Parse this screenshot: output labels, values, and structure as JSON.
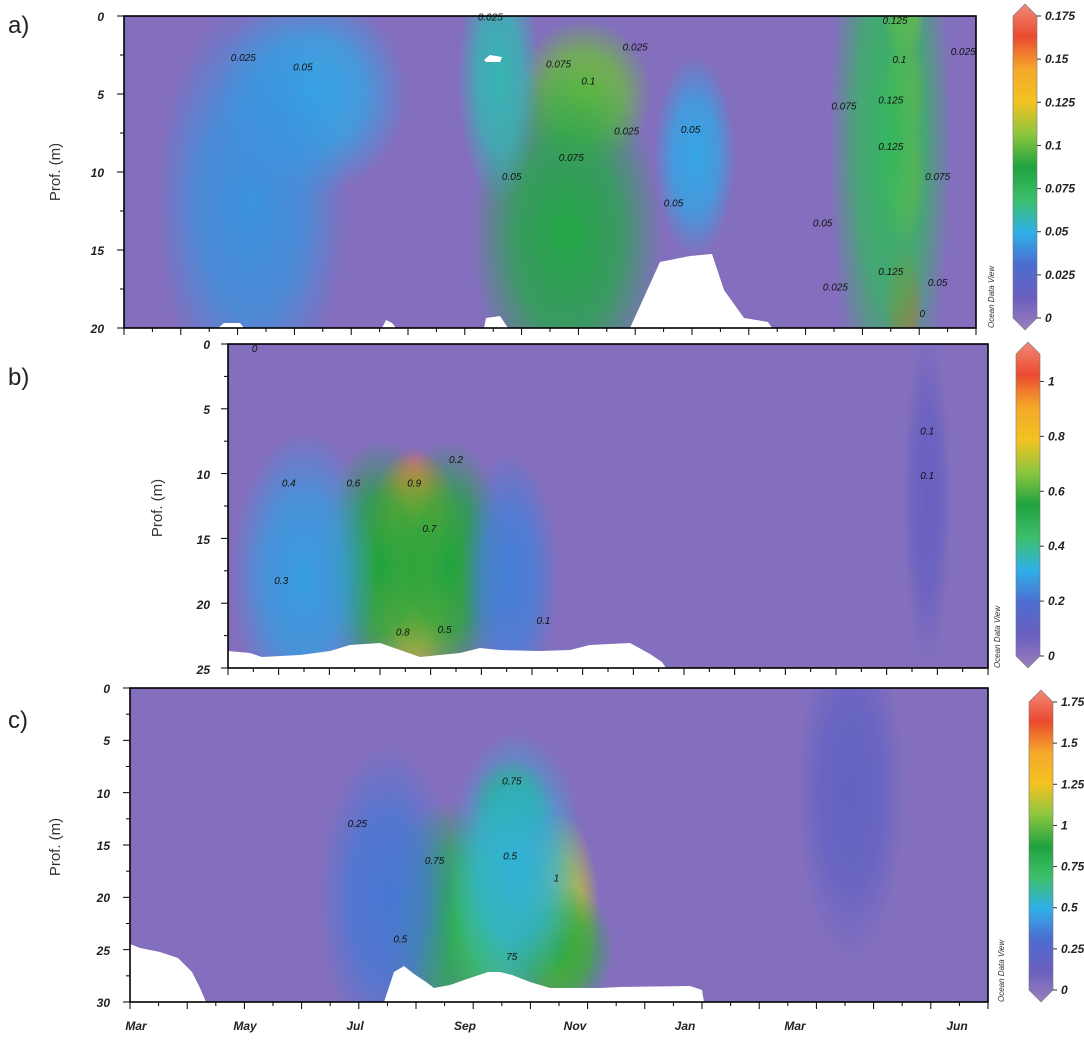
{
  "colors": {
    "scale": [
      "#9c7fbe",
      "#6a5fbe",
      "#4c6cd0",
      "#2fb0e8",
      "#3cbf6a",
      "#1fa33f",
      "#8cc63f",
      "#f3c221",
      "#f5a82a",
      "#ea4a2f",
      "#f08a78"
    ],
    "mask": "#ffffff",
    "frame": "#000000",
    "contour": "#3b3b3b"
  },
  "chart_data": [
    {
      "panel": "a)",
      "type": "heatmap",
      "ylabel": "Prof. (m)",
      "yticks": [
        "0",
        "5",
        "10",
        "15",
        "20"
      ],
      "ylim": [
        20,
        0
      ],
      "xlim": [
        "Mar",
        "Jun"
      ],
      "xticks_labeled": false,
      "colorbar": {
        "min": 0,
        "max": 0.175,
        "ticks": [
          "0",
          "0.025",
          "0.05",
          "0.075",
          "0.1",
          "0.125",
          "0.15",
          "0.175"
        ]
      },
      "watermark": "Ocean Data View",
      "hotspots": [
        {
          "time": 0.22,
          "depth": 5,
          "value": 0.05,
          "wt": 0.07,
          "wd": 4
        },
        {
          "time": 0.15,
          "depth": 12,
          "value": 0.045,
          "wt": 0.07,
          "wd": 8
        },
        {
          "time": 0.54,
          "depth": 5,
          "value": 0.1,
          "wt": 0.05,
          "wd": 3
        },
        {
          "time": 0.52,
          "depth": 14,
          "value": 0.085,
          "wt": 0.07,
          "wd": 7
        },
        {
          "time": 0.44,
          "depth": 4,
          "value": 0.06,
          "wt": 0.03,
          "wd": 5
        },
        {
          "time": 0.67,
          "depth": 9,
          "value": 0.05,
          "wt": 0.03,
          "wd": 4
        },
        {
          "time": 0.915,
          "depth": 0,
          "value": 0.125,
          "wt": 0.015,
          "wd": 2
        },
        {
          "time": 0.915,
          "depth": 5,
          "value": 0.135,
          "wt": 0.016,
          "wd": 2.5
        },
        {
          "time": 0.915,
          "depth": 10,
          "value": 0.135,
          "wt": 0.016,
          "wd": 3
        },
        {
          "time": 0.915,
          "depth": 18.5,
          "value": 0.16,
          "wt": 0.014,
          "wd": 2.5
        },
        {
          "time": 0.9,
          "depth": 8,
          "value": 0.075,
          "wt": 0.045,
          "wd": 12
        }
      ],
      "contour_labels": [
        {
          "time": 0.14,
          "depth": 2.9,
          "text": "0.025"
        },
        {
          "time": 0.21,
          "depth": 3.5,
          "text": "0.05"
        },
        {
          "time": 0.43,
          "depth": 0.3,
          "text": "0.025"
        },
        {
          "time": 0.51,
          "depth": 3.3,
          "text": "0.075"
        },
        {
          "time": 0.545,
          "depth": 4.4,
          "text": "0.1"
        },
        {
          "time": 0.6,
          "depth": 2.2,
          "text": "0.025"
        },
        {
          "time": 0.59,
          "depth": 7.6,
          "text": "0.025"
        },
        {
          "time": 0.665,
          "depth": 7.5,
          "text": "0.05"
        },
        {
          "time": 0.525,
          "depth": 9.3,
          "text": "0.075"
        },
        {
          "time": 0.455,
          "depth": 10.5,
          "text": "0.05"
        },
        {
          "time": 0.645,
          "depth": 12.2,
          "text": "0.05"
        },
        {
          "time": 0.845,
          "depth": 6,
          "text": "0.075"
        },
        {
          "time": 0.91,
          "depth": 3,
          "text": "0.1"
        },
        {
          "time": 0.9,
          "depth": 5.6,
          "text": "0.125"
        },
        {
          "time": 0.9,
          "depth": 8.6,
          "text": "0.125"
        },
        {
          "time": 0.955,
          "depth": 10.5,
          "text": "0.075"
        },
        {
          "time": 0.82,
          "depth": 13.5,
          "text": "0.05"
        },
        {
          "time": 0.9,
          "depth": 16.6,
          "text": "0.125"
        },
        {
          "time": 0.835,
          "depth": 17.6,
          "text": "0.025"
        },
        {
          "time": 0.955,
          "depth": 17.3,
          "text": "0.05"
        },
        {
          "time": 0.985,
          "depth": 2.5,
          "text": "0.025"
        },
        {
          "time": 0.905,
          "depth": 0.5,
          "text": "0.125"
        },
        {
          "time": 0.937,
          "depth": 19.3,
          "text": "0"
        }
      ]
    },
    {
      "panel": "b)",
      "type": "heatmap",
      "ylabel": "Prof. (m)",
      "yticks": [
        "0",
        "5",
        "10",
        "15",
        "20",
        "25"
      ],
      "ylim": [
        25,
        0
      ],
      "xlim": [
        "Jun",
        "Jun"
      ],
      "xticks_labeled": false,
      "colorbar": {
        "min": 0,
        "max": 1.1,
        "ticks": [
          "0",
          "0.2",
          "0.4",
          "0.6",
          "0.8",
          "1"
        ]
      },
      "watermark": "Ocean Data View",
      "hotspots": [
        {
          "time": 0.245,
          "depth": 13.5,
          "value": 0.95,
          "wt": 0.035,
          "wd": 3.5
        },
        {
          "time": 0.245,
          "depth": 18,
          "value": 0.78,
          "wt": 0.05,
          "wd": 6
        },
        {
          "time": 0.2,
          "depth": 17,
          "value": 0.55,
          "wt": 0.05,
          "wd": 6
        },
        {
          "time": 0.29,
          "depth": 17,
          "value": 0.55,
          "wt": 0.05,
          "wd": 6
        },
        {
          "time": 0.1,
          "depth": 18,
          "value": 0.3,
          "wt": 0.06,
          "wd": 7
        },
        {
          "time": 0.37,
          "depth": 18,
          "value": 0.25,
          "wt": 0.04,
          "wd": 6
        },
        {
          "time": 0.92,
          "depth": 12,
          "value": 0.12,
          "wt": 0.02,
          "wd": 8
        }
      ],
      "contour_labels": [
        {
          "time": 0.035,
          "depth": 0.6,
          "text": "0"
        },
        {
          "time": 0.3,
          "depth": 9.2,
          "text": "0.2"
        },
        {
          "time": 0.08,
          "depth": 11,
          "text": "0.4"
        },
        {
          "time": 0.165,
          "depth": 11,
          "text": "0.6"
        },
        {
          "time": 0.245,
          "depth": 11,
          "text": "0.9"
        },
        {
          "time": 0.265,
          "depth": 14.5,
          "text": "0.7"
        },
        {
          "time": 0.07,
          "depth": 18.5,
          "text": "0.3"
        },
        {
          "time": 0.23,
          "depth": 22.5,
          "text": "0.8"
        },
        {
          "time": 0.285,
          "depth": 22.3,
          "text": "0.5"
        },
        {
          "time": 0.415,
          "depth": 21.6,
          "text": "0.1"
        },
        {
          "time": 0.92,
          "depth": 7,
          "text": "0.1"
        },
        {
          "time": 0.92,
          "depth": 10.4,
          "text": "0.1"
        }
      ]
    },
    {
      "panel": "c)",
      "type": "heatmap",
      "ylabel": "Prof. (m)",
      "yticks": [
        "0",
        "5",
        "10",
        "15",
        "20",
        "25",
        "30"
      ],
      "ylim": [
        30,
        0
      ],
      "xlim": [
        "Mar",
        "Jun"
      ],
      "xticks": [
        "Mar",
        "May",
        "Jul",
        "Sep",
        "Nov",
        "Jan",
        "Mar",
        "Jun"
      ],
      "colorbar": {
        "min": 0,
        "max": 1.75,
        "ticks": [
          "0",
          "0.25",
          "0.5",
          "0.75",
          "1",
          "1.25",
          "1.5",
          "1.75"
        ]
      },
      "watermark": "Ocean Data View",
      "hotspots": [
        {
          "time": 0.5,
          "depth": 21.5,
          "value": 1.15,
          "wt": 0.03,
          "wd": 6
        },
        {
          "time": 0.37,
          "depth": 22,
          "value": 0.82,
          "wt": 0.05,
          "wd": 7
        },
        {
          "time": 0.445,
          "depth": 11.5,
          "value": 0.82,
          "wt": 0.03,
          "wd": 3
        },
        {
          "time": 0.43,
          "depth": 22,
          "value": 0.7,
          "wt": 0.04,
          "wd": 7
        },
        {
          "time": 0.5,
          "depth": 25,
          "value": 0.9,
          "wt": 0.04,
          "wd": 4
        },
        {
          "time": 0.45,
          "depth": 17,
          "value": 0.55,
          "wt": 0.05,
          "wd": 8
        },
        {
          "time": 0.3,
          "depth": 20,
          "value": 0.38,
          "wt": 0.05,
          "wd": 9
        },
        {
          "time": 0.84,
          "depth": 10,
          "value": 0.22,
          "wt": 0.04,
          "wd": 10
        }
      ],
      "contour_labels": [
        {
          "time": 0.265,
          "depth": 13.3,
          "text": "0.25"
        },
        {
          "time": 0.445,
          "depth": 9.2,
          "text": "0.75"
        },
        {
          "time": 0.355,
          "depth": 16.8,
          "text": "0.75"
        },
        {
          "time": 0.443,
          "depth": 16.4,
          "text": "0.5"
        },
        {
          "time": 0.497,
          "depth": 18.5,
          "text": "1"
        },
        {
          "time": 0.315,
          "depth": 24.3,
          "text": "0.5"
        },
        {
          "time": 0.445,
          "depth": 26,
          "text": "75"
        }
      ]
    }
  ]
}
